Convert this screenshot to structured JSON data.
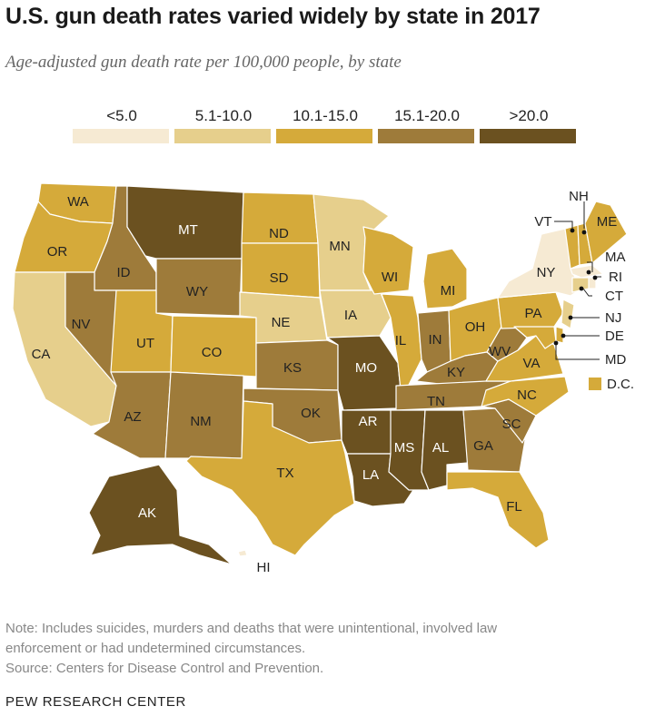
{
  "title": "U.S. gun death rates varied widely by state in 2017",
  "subtitle": "Age-adjusted gun death rate per 100,000 people, by state",
  "legend": [
    {
      "label": "<5.0",
      "color": "#f6ead3"
    },
    {
      "label": "5.1-10.0",
      "color": "#e6cf8c"
    },
    {
      "label": "10.1-15.0",
      "color": "#d5aa3a"
    },
    {
      "label": "15.1-20.0",
      "color": "#9e7b3a"
    },
    {
      "label": ">20.0",
      "color": "#6b5120"
    }
  ],
  "states": [
    {
      "code": "WA",
      "bin": 2
    },
    {
      "code": "OR",
      "bin": 2
    },
    {
      "code": "CA",
      "bin": 1
    },
    {
      "code": "ID",
      "bin": 3
    },
    {
      "code": "NV",
      "bin": 3
    },
    {
      "code": "MT",
      "bin": 4
    },
    {
      "code": "WY",
      "bin": 3
    },
    {
      "code": "UT",
      "bin": 2
    },
    {
      "code": "AZ",
      "bin": 3
    },
    {
      "code": "CO",
      "bin": 2
    },
    {
      "code": "NM",
      "bin": 3
    },
    {
      "code": "ND",
      "bin": 2
    },
    {
      "code": "SD",
      "bin": 2
    },
    {
      "code": "NE",
      "bin": 1
    },
    {
      "code": "KS",
      "bin": 3
    },
    {
      "code": "OK",
      "bin": 3
    },
    {
      "code": "TX",
      "bin": 2
    },
    {
      "code": "MN",
      "bin": 1
    },
    {
      "code": "IA",
      "bin": 1
    },
    {
      "code": "MO",
      "bin": 4
    },
    {
      "code": "AR",
      "bin": 4
    },
    {
      "code": "LA",
      "bin": 4
    },
    {
      "code": "WI",
      "bin": 2
    },
    {
      "code": "IL",
      "bin": 2
    },
    {
      "code": "MI",
      "bin": 2
    },
    {
      "code": "IN",
      "bin": 3
    },
    {
      "code": "OH",
      "bin": 2
    },
    {
      "code": "KY",
      "bin": 3
    },
    {
      "code": "TN",
      "bin": 3
    },
    {
      "code": "MS",
      "bin": 4
    },
    {
      "code": "AL",
      "bin": 4
    },
    {
      "code": "GA",
      "bin": 3
    },
    {
      "code": "FL",
      "bin": 2
    },
    {
      "code": "SC",
      "bin": 3
    },
    {
      "code": "NC",
      "bin": 2
    },
    {
      "code": "VA",
      "bin": 2
    },
    {
      "code": "WV",
      "bin": 3
    },
    {
      "code": "PA",
      "bin": 2
    },
    {
      "code": "NY",
      "bin": 0
    },
    {
      "code": "VT",
      "bin": 2
    },
    {
      "code": "NH",
      "bin": 2
    },
    {
      "code": "ME",
      "bin": 2
    },
    {
      "code": "MA",
      "bin": 0
    },
    {
      "code": "RI",
      "bin": 0
    },
    {
      "code": "CT",
      "bin": 1
    },
    {
      "code": "NJ",
      "bin": 1
    },
    {
      "code": "DE",
      "bin": 2
    },
    {
      "code": "MD",
      "bin": 2
    },
    {
      "code": "D.C.",
      "bin": 2
    },
    {
      "code": "AK",
      "bin": 4
    },
    {
      "code": "HI",
      "bin": 0
    }
  ],
  "note_lines": [
    "Note: Includes suicides, murders and deaths that were unintentional, involved law",
    "enforcement or had undetermined circumstances.",
    "Source: Centers for Disease Control and Prevention."
  ],
  "brand": "PEW RESEARCH CENTER"
}
